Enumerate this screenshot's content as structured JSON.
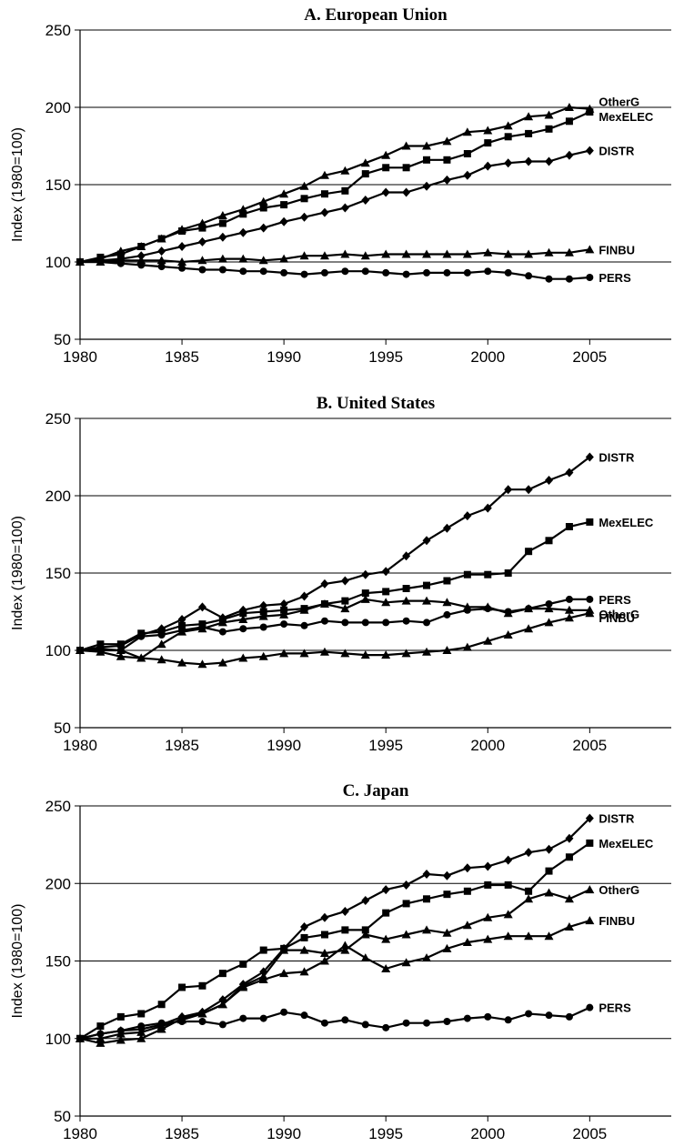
{
  "chart_data": [
    {
      "type": "line",
      "title": "A. European Union",
      "ylabel": "Index (1980=100)",
      "xlabel": "",
      "xlim": [
        1980,
        2009
      ],
      "ylim": [
        50,
        250
      ],
      "x_ticks": [
        1980,
        1985,
        1990,
        1995,
        2000,
        2005
      ],
      "y_ticks": [
        50,
        100,
        150,
        200,
        250
      ],
      "gridlines": "horizontal",
      "x": [
        1980,
        1981,
        1982,
        1983,
        1984,
        1985,
        1986,
        1987,
        1988,
        1989,
        1990,
        1991,
        1992,
        1993,
        1994,
        1995,
        1996,
        1997,
        1998,
        1999,
        2000,
        2001,
        2002,
        2003,
        2004,
        2005
      ],
      "series": [
        {
          "name": "OtherG",
          "marker": "triangle",
          "values": [
            100,
            102,
            107,
            110,
            115,
            121,
            125,
            130,
            134,
            139,
            144,
            149,
            156,
            159,
            164,
            169,
            175,
            175,
            178,
            184,
            185,
            188,
            194,
            195,
            200,
            199
          ]
        },
        {
          "name": "MexELEC",
          "marker": "square",
          "values": [
            100,
            103,
            105,
            110,
            115,
            120,
            122,
            125,
            131,
            135,
            137,
            141,
            144,
            146,
            157,
            161,
            161,
            166,
            166,
            170,
            177,
            181,
            183,
            186,
            191,
            197
          ]
        },
        {
          "name": "DISTR",
          "marker": "diamond",
          "values": [
            100,
            101,
            102,
            104,
            107,
            110,
            113,
            116,
            119,
            122,
            126,
            129,
            132,
            135,
            140,
            145,
            145,
            149,
            153,
            156,
            162,
            164,
            165,
            165,
            169,
            172
          ]
        },
        {
          "name": "FINBU",
          "marker": "triangle",
          "values": [
            100,
            100,
            101,
            101,
            101,
            100,
            101,
            102,
            102,
            101,
            102,
            104,
            104,
            105,
            104,
            105,
            105,
            105,
            105,
            105,
            106,
            105,
            105,
            106,
            106,
            108
          ]
        },
        {
          "name": "PERS",
          "marker": "circle",
          "values": [
            100,
            100,
            99,
            98,
            97,
            96,
            95,
            95,
            94,
            94,
            93,
            92,
            93,
            94,
            94,
            93,
            92,
            93,
            93,
            93,
            94,
            93,
            91,
            89,
            89,
            90
          ]
        }
      ]
    },
    {
      "type": "line",
      "title": "B. United States",
      "ylabel": "Index (1980=100)",
      "xlabel": "",
      "xlim": [
        1980,
        2009
      ],
      "ylim": [
        50,
        250
      ],
      "x_ticks": [
        1980,
        1985,
        1990,
        1995,
        2000,
        2005
      ],
      "y_ticks": [
        50,
        100,
        150,
        200,
        250
      ],
      "gridlines": "horizontal",
      "x": [
        1980,
        1981,
        1982,
        1983,
        1984,
        1985,
        1986,
        1987,
        1988,
        1989,
        1990,
        1991,
        1992,
        1993,
        1994,
        1995,
        1996,
        1997,
        1998,
        1999,
        2000,
        2001,
        2002,
        2003,
        2004,
        2005
      ],
      "series": [
        {
          "name": "DISTR",
          "marker": "diamond",
          "values": [
            100,
            102,
            103,
            110,
            114,
            120,
            128,
            121,
            126,
            129,
            130,
            135,
            143,
            145,
            149,
            151,
            161,
            171,
            179,
            187,
            192,
            204,
            204,
            210,
            215,
            225
          ]
        },
        {
          "name": "MexELEC",
          "marker": "square",
          "values": [
            100,
            104,
            104,
            111,
            112,
            116,
            117,
            120,
            124,
            125,
            126,
            127,
            130,
            132,
            137,
            138,
            140,
            142,
            145,
            149,
            149,
            150,
            164,
            171,
            180,
            183
          ]
        },
        {
          "name": "PERS",
          "marker": "circle",
          "values": [
            100,
            100,
            100,
            109,
            110,
            113,
            115,
            112,
            114,
            115,
            117,
            116,
            119,
            118,
            118,
            118,
            119,
            118,
            123,
            126,
            127,
            125,
            127,
            130,
            133,
            133
          ]
        },
        {
          "name": "OtherG",
          "marker": "triangle",
          "values": [
            100,
            101,
            100,
            95,
            104,
            112,
            114,
            118,
            120,
            122,
            123,
            126,
            130,
            127,
            133,
            131,
            132,
            132,
            131,
            128,
            128,
            124,
            127,
            127,
            126,
            126
          ]
        },
        {
          "name": "FINBU",
          "marker": "triangle",
          "values": [
            100,
            99,
            96,
            95,
            94,
            92,
            91,
            92,
            95,
            96,
            98,
            98,
            99,
            98,
            97,
            97,
            98,
            99,
            100,
            102,
            106,
            110,
            114,
            118,
            121,
            124
          ]
        }
      ]
    },
    {
      "type": "line",
      "title": "C. Japan",
      "ylabel": "Index (1980=100)",
      "xlabel": "",
      "xlim": [
        1980,
        2009
      ],
      "ylim": [
        50,
        250
      ],
      "x_ticks": [
        1980,
        1985,
        1990,
        1995,
        2000,
        2005
      ],
      "y_ticks": [
        50,
        100,
        150,
        200,
        250
      ],
      "gridlines": "horizontal",
      "x": [
        1980,
        1981,
        1982,
        1983,
        1984,
        1985,
        1986,
        1987,
        1988,
        1989,
        1990,
        1991,
        1992,
        1993,
        1994,
        1995,
        1996,
        1997,
        1998,
        1999,
        2000,
        2001,
        2002,
        2003,
        2004,
        2005
      ],
      "series": [
        {
          "name": "DISTR",
          "marker": "diamond",
          "values": [
            100,
            103,
            105,
            106,
            109,
            114,
            117,
            125,
            135,
            143,
            158,
            172,
            178,
            182,
            189,
            196,
            199,
            206,
            205,
            210,
            211,
            215,
            220,
            222,
            229,
            242
          ]
        },
        {
          "name": "MexELEC",
          "marker": "square",
          "values": [
            100,
            108,
            114,
            116,
            122,
            133,
            134,
            142,
            148,
            157,
            158,
            165,
            167,
            170,
            170,
            181,
            187,
            190,
            193,
            195,
            199,
            199,
            195,
            208,
            217,
            226
          ]
        },
        {
          "name": "FINBU",
          "marker": "triangle",
          "values": [
            100,
            97,
            99,
            100,
            106,
            113,
            116,
            122,
            133,
            138,
            142,
            143,
            150,
            160,
            152,
            145,
            149,
            152,
            158,
            162,
            164,
            166,
            166,
            166,
            172,
            176
          ]
        },
        {
          "name": "OtherG",
          "marker": "triangle",
          "values": [
            100,
            100,
            103,
            104,
            108,
            112,
            116,
            122,
            134,
            140,
            157,
            157,
            155,
            157,
            167,
            164,
            167,
            170,
            168,
            173,
            178,
            180,
            190,
            194,
            190,
            196
          ]
        },
        {
          "name": "PERS",
          "marker": "circle",
          "values": [
            100,
            103,
            105,
            108,
            110,
            111,
            111,
            109,
            113,
            113,
            117,
            115,
            110,
            112,
            109,
            107,
            110,
            110,
            111,
            113,
            114,
            112,
            116,
            115,
            114,
            120
          ]
        }
      ]
    }
  ]
}
